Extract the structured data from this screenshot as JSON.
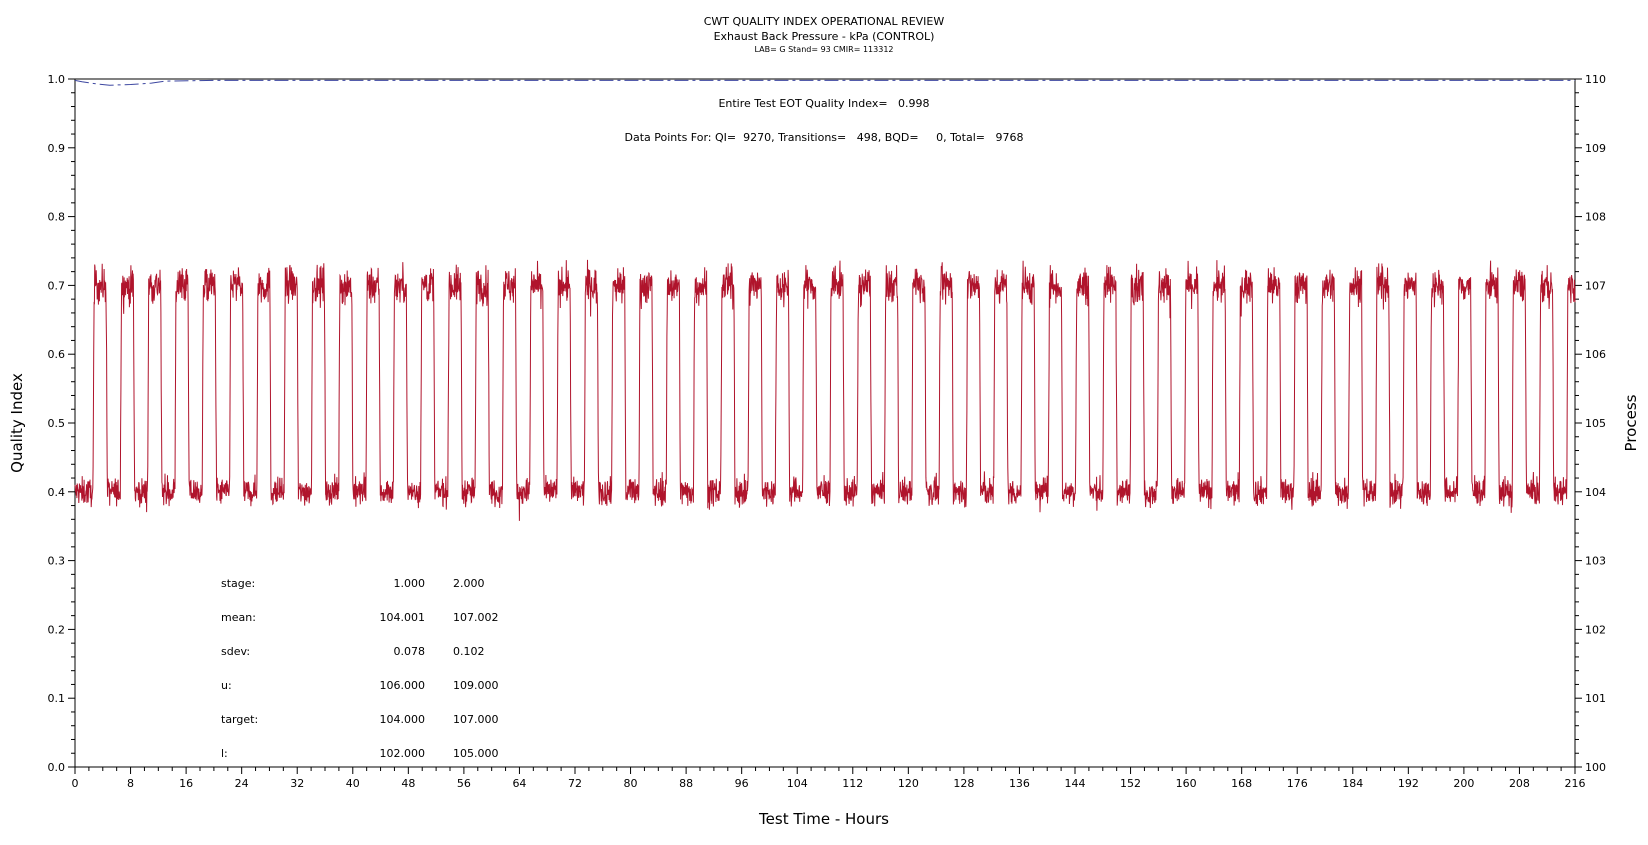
{
  "chart_data": {
    "type": "line",
    "title": "CWT QUALITY INDEX OPERATIONAL REVIEW",
    "subtitle": "Exhaust Back Pressure - kPa (CONTROL)",
    "subtitle2": "LAB= G Stand= 93 CMIR= 113312",
    "xlabel": "Test Time - Hours",
    "ylabel": "Quality Index",
    "y2label": "Process",
    "xlim": [
      0,
      216
    ],
    "ylim": [
      0.0,
      1.0
    ],
    "y2lim": [
      100,
      110
    ],
    "xticks": [
      "0",
      "8",
      "16",
      "24",
      "32",
      "40",
      "48",
      "56",
      "64",
      "72",
      "80",
      "88",
      "96",
      "104",
      "112",
      "120",
      "128",
      "136",
      "144",
      "152",
      "160",
      "168",
      "176",
      "184",
      "192",
      "200",
      "208",
      "216"
    ],
    "yticks": [
      "0.0",
      "0.1",
      "0.2",
      "0.3",
      "0.4",
      "0.5",
      "0.6",
      "0.7",
      "0.8",
      "0.9",
      "1.0"
    ],
    "y2ticks": [
      "100",
      "101",
      "102",
      "103",
      "104",
      "105",
      "106",
      "107",
      "108",
      "109",
      "110"
    ],
    "annotations": {
      "qi_text": "Entire Test EOT Quality Index=   0.998",
      "points_text": "Data Points For: QI=  9270, Transitions=   498, BQD=     0, Total=   9768"
    },
    "series": [
      {
        "role": "quality-index",
        "color": "#3c46a0",
        "style": "dash-dot",
        "x": [
          0,
          1,
          3,
          5,
          8,
          11,
          13,
          20,
          216
        ],
        "y": [
          0.998,
          0.996,
          0.993,
          0.991,
          0.992,
          0.994,
          0.997,
          0.998,
          0.998
        ]
      },
      {
        "role": "process",
        "color": "#b0142c",
        "style": "noisy-square-wave",
        "stage_levels": [
          104.0,
          107.0
        ],
        "first_high_start": 2.6,
        "cycle_hours": 3.93,
        "high_fraction": 0.48,
        "cycles": 55,
        "low_noise_sdev": 0.078,
        "high_noise_sdev": 0.102
      }
    ],
    "stats_table": {
      "rows": [
        {
          "label": "stage:",
          "c1": "1.000",
          "c2": "2.000"
        },
        {
          "label": "mean:",
          "c1": "104.001",
          "c2": "107.002"
        },
        {
          "label": "sdev:",
          "c1": "0.078",
          "c2": "0.102"
        },
        {
          "label": "u:",
          "c1": "106.000",
          "c2": "109.000"
        },
        {
          "label": "target:",
          "c1": "104.000",
          "c2": "107.000"
        },
        {
          "label": "l:",
          "c1": "102.000",
          "c2": "105.000"
        }
      ]
    }
  }
}
